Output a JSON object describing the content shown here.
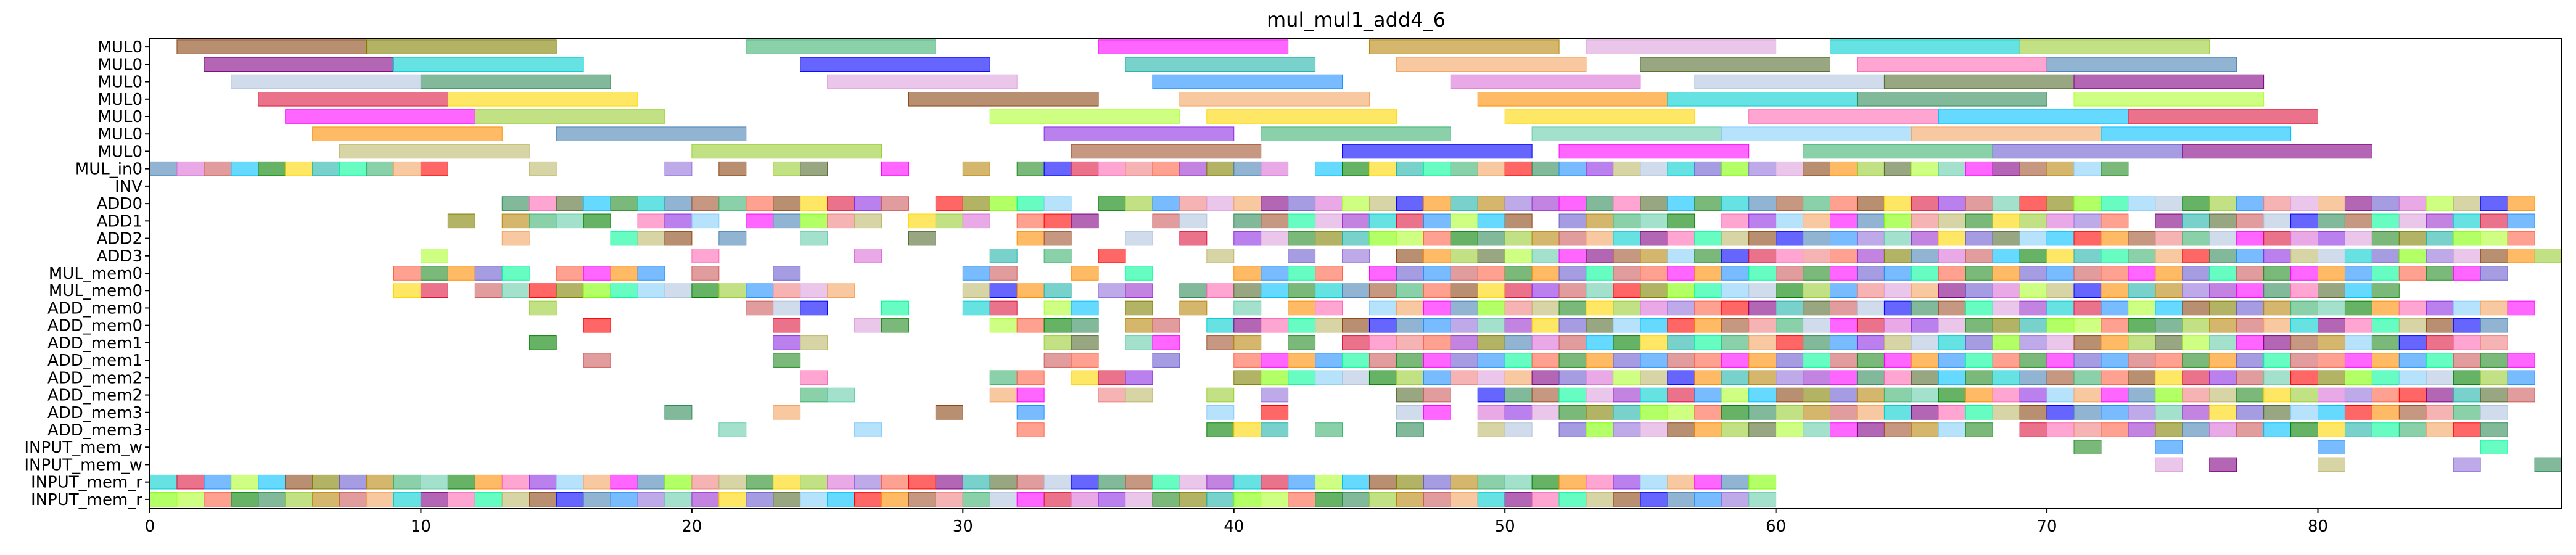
{
  "chart_data": {
    "type": "gantt",
    "title": "mul_mul1_add4_6",
    "xlim": [
      0,
      89
    ],
    "x_ticks": [
      0,
      10,
      20,
      30,
      40,
      50,
      60,
      70,
      80
    ],
    "rows": [
      "MUL0",
      "MUL0",
      "MUL0",
      "MUL0",
      "MUL0",
      "MUL0",
      "MUL0",
      "MUL_in0",
      "INV",
      "ADD0",
      "ADD1",
      "ADD2",
      "ADD3",
      "MUL_mem0",
      "MUL_mem0",
      "ADD_mem0",
      "ADD_mem0",
      "ADD_mem1",
      "ADD_mem1",
      "ADD_mem2",
      "ADD_mem2",
      "ADD_mem3",
      "ADD_mem3",
      "INPUT_mem_w",
      "INPUT_mem_w",
      "INPUT_mem_r",
      "INPUT_mem_r"
    ],
    "grid": false,
    "bar_alpha": 0.6,
    "palette": [
      "#8B4513",
      "#FF0000",
      "#008000",
      "#0000FF",
      "#FF00FF",
      "#00CED1",
      "#FFD700",
      "#808000",
      "#800080",
      "#FF8C00",
      "#2E8B57",
      "#4682B4",
      "#DC143C",
      "#9ACD32",
      "#6A5ACD",
      "#20B2AA",
      "#FF69B4",
      "#A0522D",
      "#7FFF00",
      "#1E90FF",
      "#DA70D6",
      "#B8860B",
      "#556B2F",
      "#8A2BE2",
      "#00FA9A",
      "#F08080",
      "#ADFF2F",
      "#9370DB",
      "#3CB371",
      "#CD5C5C",
      "#87CEFA",
      "#DDA0DD",
      "#BDB76B",
      "#00BFFF",
      "#FF6347",
      "#66CDAA",
      "#B0C4DE",
      "#F4A460",
      "#9932CC",
      "#228B22"
    ],
    "bars": [
      [
        0,
        1,
        8,
        0
      ],
      [
        0,
        8,
        15,
        7
      ],
      [
        0,
        22,
        29,
        28
      ],
      [
        0,
        35,
        42,
        4
      ],
      [
        0,
        45,
        52,
        21
      ],
      [
        0,
        53,
        60,
        31
      ],
      [
        0,
        62,
        69,
        5
      ],
      [
        0,
        69,
        76,
        13
      ],
      [
        1,
        2,
        9,
        8
      ],
      [
        1,
        9,
        16,
        5
      ],
      [
        1,
        24,
        31,
        3
      ],
      [
        1,
        36,
        43,
        15
      ],
      [
        1,
        46,
        53,
        37
      ],
      [
        1,
        55,
        62,
        22
      ],
      [
        1,
        63,
        70,
        16
      ],
      [
        1,
        70,
        77,
        11
      ],
      [
        2,
        3,
        10,
        36
      ],
      [
        2,
        10,
        17,
        10
      ],
      [
        2,
        25,
        32,
        31
      ],
      [
        2,
        37,
        44,
        19
      ],
      [
        2,
        48,
        55,
        20
      ],
      [
        2,
        57,
        64,
        36
      ],
      [
        2,
        64,
        71,
        22
      ],
      [
        2,
        71,
        78,
        8
      ],
      [
        3,
        4,
        11,
        12
      ],
      [
        3,
        11,
        18,
        6
      ],
      [
        3,
        28,
        35,
        0
      ],
      [
        3,
        38,
        45,
        37
      ],
      [
        3,
        49,
        56,
        9
      ],
      [
        3,
        56,
        63,
        5
      ],
      [
        3,
        63,
        70,
        10
      ],
      [
        3,
        71,
        78,
        26
      ],
      [
        4,
        5,
        12,
        4
      ],
      [
        4,
        12,
        19,
        13
      ],
      [
        4,
        31,
        38,
        26
      ],
      [
        4,
        39,
        46,
        6
      ],
      [
        4,
        50,
        57,
        6
      ],
      [
        4,
        59,
        66,
        16
      ],
      [
        4,
        66,
        73,
        33
      ],
      [
        4,
        73,
        80,
        12
      ],
      [
        5,
        6,
        13,
        9
      ],
      [
        5,
        15,
        22,
        11
      ],
      [
        5,
        33,
        40,
        23
      ],
      [
        5,
        41,
        48,
        28
      ],
      [
        5,
        51,
        58,
        35
      ],
      [
        5,
        58,
        65,
        30
      ],
      [
        5,
        65,
        72,
        37
      ],
      [
        5,
        72,
        79,
        33
      ],
      [
        6,
        7,
        14,
        32
      ],
      [
        6,
        20,
        27,
        13
      ],
      [
        6,
        34,
        41,
        17
      ],
      [
        6,
        44,
        51,
        3
      ],
      [
        6,
        52,
        59,
        4
      ],
      [
        6,
        61,
        68,
        28
      ],
      [
        6,
        68,
        75,
        14
      ],
      [
        6,
        75,
        82,
        8
      ]
    ],
    "cells": [
      {
        "row": 7,
        "cols": [
          0,
          1,
          2,
          3,
          4,
          5,
          6,
          7,
          8,
          9,
          10,
          14,
          19,
          21,
          23,
          24,
          27,
          30,
          32,
          33,
          34,
          35,
          36,
          37,
          38,
          39,
          40,
          41,
          43,
          44,
          45,
          46,
          47,
          48,
          49,
          50,
          51,
          52,
          53,
          54,
          55,
          56,
          57,
          58,
          59,
          60,
          61,
          62,
          63,
          64,
          65,
          66,
          67,
          68,
          69,
          70,
          71,
          72
        ]
      },
      {
        "row": 9,
        "cols": [
          13,
          14,
          15,
          16,
          17,
          18,
          19,
          20,
          21,
          22,
          23,
          24,
          25,
          26,
          27,
          29,
          30,
          31,
          32,
          33,
          35,
          36,
          37,
          38,
          39,
          40,
          41,
          42,
          43,
          44,
          45,
          46,
          47,
          48,
          49,
          50,
          51,
          52,
          53,
          54,
          55,
          56,
          57,
          58,
          59,
          60,
          61,
          62,
          63,
          64,
          65,
          66,
          67,
          68,
          69,
          70,
          71,
          72,
          73,
          74,
          75,
          76,
          77,
          78,
          79,
          80,
          81,
          82,
          83,
          84,
          85,
          86,
          87
        ]
      },
      {
        "row": 10,
        "cols": [
          11,
          13,
          14,
          15,
          16,
          18,
          19,
          20,
          22,
          23,
          24,
          25,
          26,
          28,
          29,
          30,
          32,
          33,
          34,
          37,
          38,
          40,
          41,
          42,
          43,
          44,
          45,
          46,
          47,
          48,
          49,
          50,
          52,
          53,
          54,
          55,
          56,
          58,
          59,
          60,
          61,
          62,
          63,
          64,
          65,
          66,
          67,
          68,
          69,
          70,
          71,
          72,
          74,
          75,
          76,
          77,
          78,
          79,
          80,
          81,
          82,
          83,
          84,
          85,
          86,
          87
        ]
      },
      {
        "row": 11,
        "cols": [
          13,
          17,
          18,
          19,
          21,
          24,
          28,
          32,
          33,
          36,
          38,
          40,
          41,
          42,
          43,
          44,
          45,
          46,
          47,
          48,
          49,
          50,
          51,
          52,
          53,
          54,
          55,
          56,
          57,
          58,
          59,
          60,
          61,
          62,
          63,
          64,
          65,
          66,
          67,
          68,
          69,
          70,
          71,
          72,
          73,
          74,
          75,
          76,
          77,
          78,
          79,
          80,
          81,
          82,
          83,
          84,
          85,
          86,
          87
        ]
      },
      {
        "row": 12,
        "cols": [
          10,
          20,
          26,
          31,
          33,
          35,
          39,
          42,
          44,
          46,
          47,
          48,
          49,
          50,
          51,
          52,
          53,
          54,
          55,
          56,
          57,
          58,
          59,
          60,
          61,
          62,
          63,
          64,
          65,
          66,
          67,
          68,
          69,
          70,
          71,
          72,
          73,
          74,
          75,
          76,
          77,
          78,
          79,
          80,
          81,
          82,
          83,
          84,
          85,
          86,
          87,
          88
        ]
      },
      {
        "row": 13,
        "cols": [
          9,
          10,
          11,
          12,
          13,
          15,
          16,
          17,
          18,
          20,
          23,
          30,
          31,
          34,
          36,
          40,
          41,
          42,
          43,
          45,
          46,
          47,
          48,
          49,
          50,
          51,
          52,
          53,
          54,
          55,
          56,
          57,
          58,
          59,
          60,
          61,
          62,
          63,
          64,
          65,
          66,
          67,
          68,
          69,
          70,
          71,
          72,
          73,
          74,
          75,
          76,
          77,
          78,
          79,
          80,
          81,
          82,
          83,
          84,
          85,
          86
        ]
      },
      {
        "row": 14,
        "cols": [
          9,
          10,
          12,
          13,
          14,
          15,
          16,
          17,
          18,
          19,
          20,
          21,
          22,
          23,
          24,
          25,
          30,
          31,
          32,
          33,
          35,
          36,
          38,
          39,
          40,
          41,
          42,
          43,
          44,
          45,
          46,
          47,
          48,
          49,
          50,
          51,
          52,
          53,
          54,
          55,
          56,
          57,
          58,
          59,
          60,
          61,
          62,
          63,
          64,
          65,
          66,
          67,
          68,
          69,
          70,
          71,
          72,
          73,
          74,
          75,
          76,
          77,
          78,
          79,
          80,
          81,
          82
        ]
      },
      {
        "row": 15,
        "cols": [
          14,
          22,
          23,
          24,
          27,
          30,
          31,
          33,
          34,
          36,
          38,
          40,
          42,
          43,
          45,
          46,
          47,
          48,
          49,
          50,
          51,
          52,
          53,
          54,
          55,
          56,
          57,
          58,
          59,
          60,
          61,
          62,
          63,
          64,
          65,
          66,
          67,
          68,
          69,
          70,
          71,
          72,
          73,
          74,
          75,
          76,
          77,
          78,
          79,
          80,
          81,
          82,
          83,
          84,
          85,
          86,
          87
        ]
      },
      {
        "row": 16,
        "cols": [
          16,
          23,
          26,
          27,
          31,
          32,
          33,
          34,
          36,
          37,
          39,
          40,
          41,
          42,
          43,
          44,
          45,
          46,
          47,
          48,
          49,
          50,
          51,
          52,
          53,
          54,
          55,
          56,
          57,
          58,
          59,
          60,
          61,
          62,
          63,
          64,
          65,
          66,
          67,
          68,
          69,
          70,
          71,
          72,
          73,
          74,
          75,
          76,
          77,
          78,
          79,
          80,
          81,
          82,
          83,
          84,
          85,
          86
        ]
      },
      {
        "row": 17,
        "cols": [
          14,
          23,
          24,
          33,
          34,
          36,
          37,
          39,
          40,
          42,
          44,
          45,
          46,
          47,
          48,
          49,
          50,
          51,
          52,
          53,
          54,
          55,
          56,
          57,
          58,
          59,
          60,
          61,
          62,
          63,
          64,
          65,
          66,
          67,
          68,
          69,
          70,
          71,
          72,
          73,
          74,
          75,
          76,
          77,
          78,
          79,
          80,
          81,
          82,
          83,
          84,
          85,
          86
        ]
      },
      {
        "row": 18,
        "cols": [
          16,
          23,
          33,
          34,
          37,
          40,
          41,
          42,
          43,
          44,
          45,
          46,
          47,
          48,
          49,
          50,
          51,
          52,
          53,
          54,
          55,
          56,
          57,
          58,
          59,
          60,
          61,
          62,
          63,
          64,
          65,
          66,
          67,
          68,
          69,
          70,
          71,
          72,
          73,
          74,
          75,
          76,
          77,
          78,
          79,
          80,
          81,
          82,
          83,
          84,
          85,
          86,
          87
        ]
      },
      {
        "row": 19,
        "cols": [
          24,
          31,
          32,
          34,
          35,
          36,
          40,
          41,
          42,
          43,
          44,
          45,
          46,
          47,
          48,
          49,
          50,
          51,
          52,
          53,
          54,
          55,
          56,
          57,
          58,
          59,
          60,
          61,
          62,
          63,
          64,
          65,
          66,
          67,
          68,
          69,
          70,
          71,
          72,
          73,
          74,
          75,
          76,
          77,
          78,
          79,
          80,
          81,
          82,
          83,
          84,
          85,
          86,
          87
        ]
      },
      {
        "row": 20,
        "cols": [
          24,
          25,
          31,
          32,
          35,
          36,
          39,
          41,
          46,
          47,
          49,
          50,
          51,
          52,
          53,
          54,
          55,
          56,
          57,
          58,
          59,
          60,
          61,
          62,
          63,
          64,
          65,
          66,
          67,
          68,
          69,
          70,
          71,
          72,
          73,
          74,
          75,
          76,
          77,
          78,
          79,
          80,
          81,
          82,
          83,
          84,
          85,
          86,
          87
        ]
      },
      {
        "row": 21,
        "cols": [
          19,
          23,
          29,
          32,
          39,
          41,
          46,
          47,
          49,
          50,
          51,
          52,
          53,
          54,
          55,
          56,
          57,
          58,
          59,
          60,
          61,
          62,
          63,
          64,
          65,
          66,
          67,
          68,
          69,
          70,
          71,
          72,
          73,
          74,
          75,
          76,
          77,
          78,
          79,
          80,
          81,
          82,
          83,
          84,
          85,
          86
        ]
      },
      {
        "row": 22,
        "cols": [
          21,
          26,
          32,
          39,
          40,
          41,
          43,
          46,
          49,
          50,
          52,
          53,
          54,
          55,
          56,
          57,
          58,
          59,
          60,
          61,
          62,
          63,
          64,
          65,
          66,
          67,
          69,
          70,
          71,
          72,
          73,
          74,
          75,
          76,
          77,
          78,
          79,
          80,
          81,
          82,
          83,
          84,
          85,
          86
        ]
      },
      {
        "row": 23,
        "cols": [
          71,
          74,
          80,
          86
        ]
      },
      {
        "row": 24,
        "cols": [
          74,
          76,
          80,
          85,
          88
        ]
      },
      {
        "row": 25,
        "cols": [
          0,
          1,
          2,
          3,
          4,
          5,
          6,
          7,
          8,
          9,
          10,
          11,
          12,
          13,
          14,
          15,
          16,
          17,
          18,
          19,
          20,
          21,
          22,
          23,
          24,
          25,
          26,
          27,
          28,
          29,
          30,
          31,
          32,
          33,
          34,
          35,
          36,
          37,
          38,
          39,
          40,
          41,
          42,
          43,
          44,
          45,
          46,
          47,
          48,
          49,
          50,
          51,
          52,
          53,
          54,
          55,
          56,
          57,
          58,
          59
        ]
      },
      {
        "row": 26,
        "cols": [
          0,
          1,
          2,
          3,
          4,
          5,
          6,
          7,
          8,
          9,
          10,
          11,
          12,
          13,
          14,
          15,
          16,
          17,
          18,
          19,
          20,
          21,
          22,
          23,
          24,
          25,
          26,
          27,
          28,
          29,
          30,
          31,
          32,
          33,
          34,
          35,
          36,
          37,
          38,
          39,
          40,
          41,
          42,
          43,
          44,
          45,
          46,
          47,
          48,
          49,
          50,
          51,
          52,
          53,
          54,
          55,
          56,
          57,
          58,
          59
        ]
      }
    ]
  }
}
